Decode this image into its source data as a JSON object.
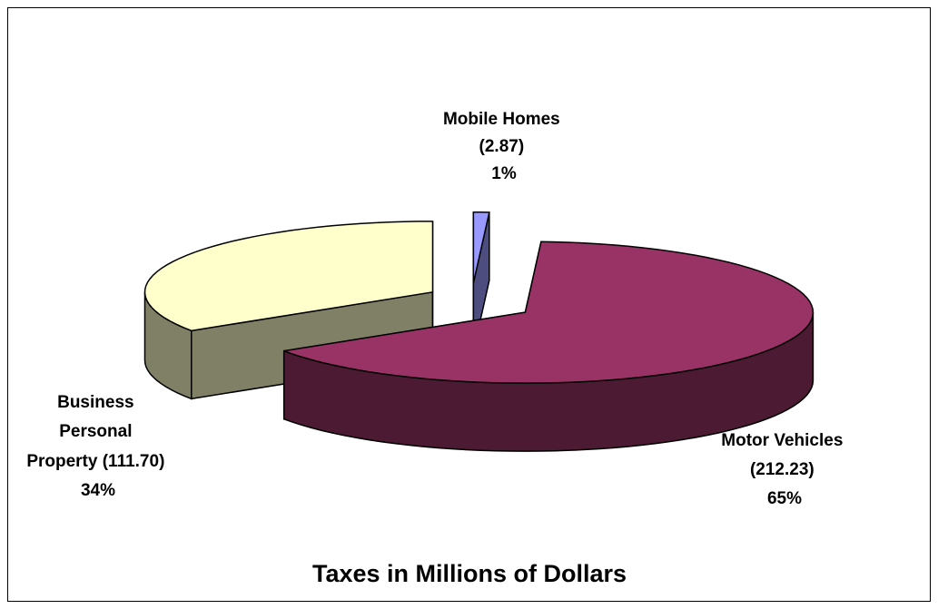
{
  "chart_data": {
    "type": "pie",
    "title": "Taxes in Millions of Dollars",
    "slices": [
      {
        "name": "Mobile Homes",
        "value": 2.87,
        "percent": 1,
        "color_top": "#9999FF",
        "color_side": "#4D4D80",
        "label_lines": [
          "Mobile Homes",
          "(2.87)",
          "1%"
        ]
      },
      {
        "name": "Motor Vehicles",
        "value": 212.23,
        "percent": 65,
        "color_top": "#993366",
        "color_side": "#4D1A33",
        "label_lines": [
          "Motor Vehicles",
          "(212.23)",
          "65%"
        ]
      },
      {
        "name": "Business Personal Property",
        "value": 111.7,
        "percent": 34,
        "color_top": "#FFFFCC",
        "color_side": "#808066",
        "label_lines": [
          "Business",
          "Personal",
          "Property (111.70)",
          "34%"
        ]
      }
    ],
    "legend": "none",
    "exploded": true
  }
}
